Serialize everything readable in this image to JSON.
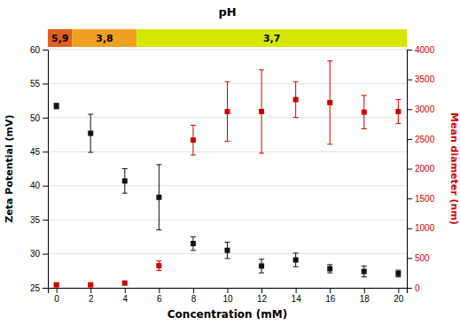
{
  "chart_data": {
    "type": "scatter",
    "title": "pH",
    "x_label": "Concentration (mM)",
    "y_label": "Zeta Potential (mV)",
    "y2_label": "Mean diameter (nm)",
    "x": [
      0,
      2,
      4,
      6,
      8,
      10,
      12,
      14,
      16,
      18,
      20
    ],
    "series": [
      {
        "color": "#111111",
        "marker": "square",
        "values": [
          51.7,
          47.7,
          40.7,
          38.3,
          31.5,
          30.5,
          28.2,
          29.1,
          27.8,
          27.4,
          27.1
        ],
        "errors": [
          0.4,
          2.8,
          1.8,
          4.8,
          1.0,
          1.2,
          1.0,
          1.0,
          0.6,
          0.8,
          0.5
        ]
      },
      {
        "color": "#cc0000",
        "marker": "square",
        "axis": "y2",
        "values": [
          50,
          50,
          80,
          370,
          2480,
          2960,
          2960,
          3160,
          3110,
          2950,
          2960
        ],
        "errors": [
          20,
          20,
          20,
          80,
          250,
          500,
          700,
          300,
          700,
          280,
          200
        ]
      }
    ],
    "xlim": [
      -0.5,
      20.5
    ],
    "xticks": [
      0,
      2,
      4,
      6,
      8,
      10,
      12,
      14,
      16,
      18,
      20
    ],
    "ylim": [
      25,
      60
    ],
    "yticks": [
      25,
      30,
      35,
      40,
      45,
      50,
      55,
      60
    ],
    "y2lim": [
      0,
      4000
    ],
    "y2ticks": [
      0,
      500,
      1000,
      1500,
      2000,
      2500,
      3000,
      3500,
      4000
    ],
    "grid": "y",
    "annotations": [
      {
        "text": "5,9",
        "x": [
          -0.5,
          0.928
        ],
        "color": "#e06020"
      },
      {
        "text": "3,8",
        "x": [
          0.928,
          4.708
        ],
        "color": "#f0a020"
      },
      {
        "text": "3,7",
        "x": [
          4.708,
          20.5
        ],
        "color": "#d4e800"
      }
    ]
  }
}
